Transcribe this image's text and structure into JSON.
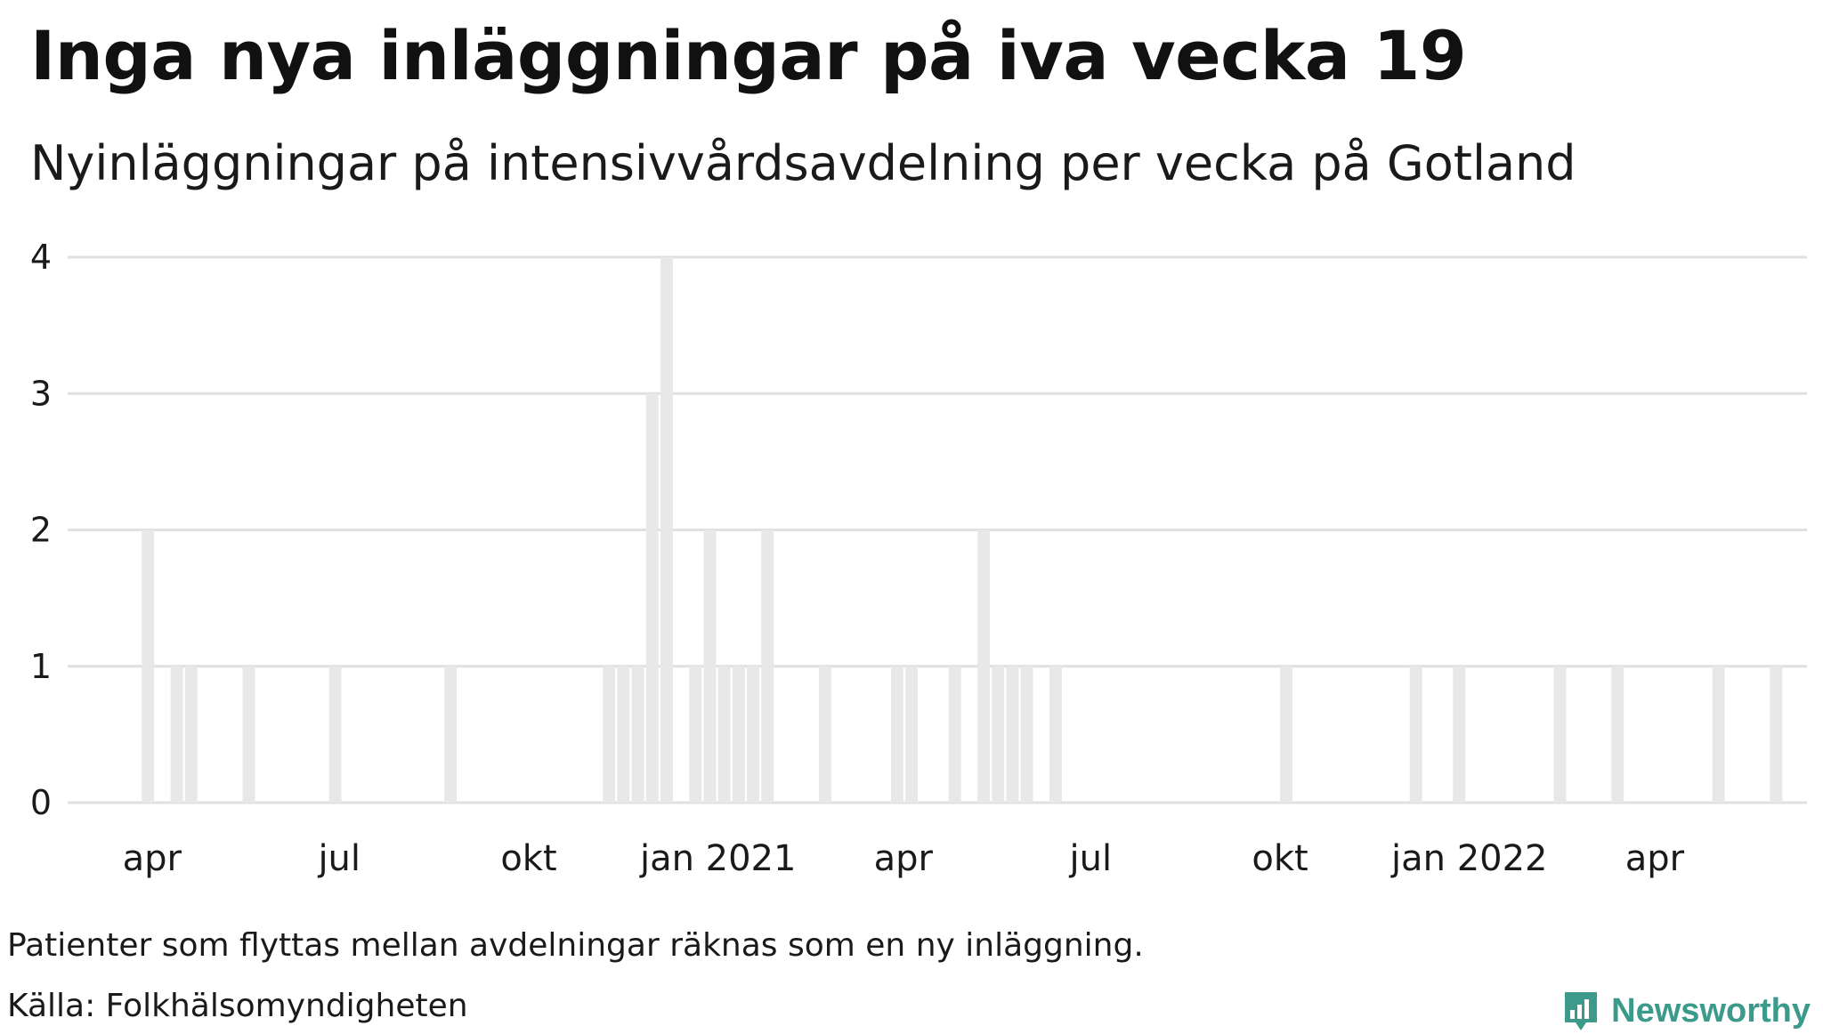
{
  "header": {
    "title": "Inga nya inläggningar på iva vecka 19",
    "subtitle": "Nyinläggningar på intensivvårdsavdelning per vecka på Gotland"
  },
  "footer": {
    "note": "Patienter som flyttas mellan avdelningar räknas som en ny inläggning.",
    "source": "Källa: Folkhälsomyndigheten",
    "brand": "Newsworthy"
  },
  "colors": {
    "bar": "#e8e8e8",
    "grid": "#e0e0e0",
    "brand": "#3b9a8a"
  },
  "chart_data": {
    "type": "bar",
    "title": "Inga nya inläggningar på iva vecka 19",
    "subtitle": "Nyinläggningar på intensivvårdsavdelning per vecka på Gotland",
    "xlabel": "",
    "ylabel": "",
    "ylim": [
      0,
      4
    ],
    "yticks": [
      0,
      1,
      2,
      3,
      4
    ],
    "grid": true,
    "legend": "none",
    "xlim": [
      "2020-02-20",
      "2022-06-14"
    ],
    "xticks": [
      {
        "date": "2020-04-01",
        "label": "apr"
      },
      {
        "date": "2020-07-01",
        "label": "jul"
      },
      {
        "date": "2020-10-01",
        "label": "okt"
      },
      {
        "date": "2021-01-01",
        "label": "jan 2021"
      },
      {
        "date": "2021-04-01",
        "label": "apr"
      },
      {
        "date": "2021-07-01",
        "label": "jul"
      },
      {
        "date": "2021-10-01",
        "label": "okt"
      },
      {
        "date": "2022-01-01",
        "label": "jan 2022"
      },
      {
        "date": "2022-04-01",
        "label": "apr"
      }
    ],
    "points": [
      {
        "date": "2020-03-30",
        "value": 2
      },
      {
        "date": "2020-04-13",
        "value": 1
      },
      {
        "date": "2020-04-20",
        "value": 1
      },
      {
        "date": "2020-05-18",
        "value": 1
      },
      {
        "date": "2020-06-29",
        "value": 1
      },
      {
        "date": "2020-08-24",
        "value": 1
      },
      {
        "date": "2020-11-09",
        "value": 1
      },
      {
        "date": "2020-11-16",
        "value": 1
      },
      {
        "date": "2020-11-23",
        "value": 1
      },
      {
        "date": "2020-11-30",
        "value": 3
      },
      {
        "date": "2020-12-07",
        "value": 4
      },
      {
        "date": "2020-12-21",
        "value": 1
      },
      {
        "date": "2020-12-28",
        "value": 2
      },
      {
        "date": "2021-01-04",
        "value": 1
      },
      {
        "date": "2021-01-11",
        "value": 1
      },
      {
        "date": "2021-01-18",
        "value": 1
      },
      {
        "date": "2021-01-25",
        "value": 2
      },
      {
        "date": "2021-02-22",
        "value": 1
      },
      {
        "date": "2021-03-29",
        "value": 1
      },
      {
        "date": "2021-04-05",
        "value": 1
      },
      {
        "date": "2021-04-26",
        "value": 1
      },
      {
        "date": "2021-05-10",
        "value": 2
      },
      {
        "date": "2021-05-17",
        "value": 1
      },
      {
        "date": "2021-05-24",
        "value": 1
      },
      {
        "date": "2021-05-31",
        "value": 1
      },
      {
        "date": "2021-06-14",
        "value": 1
      },
      {
        "date": "2021-10-04",
        "value": 1
      },
      {
        "date": "2021-12-06",
        "value": 1
      },
      {
        "date": "2021-12-27",
        "value": 1
      },
      {
        "date": "2022-02-14",
        "value": 1
      },
      {
        "date": "2022-03-14",
        "value": 1
      },
      {
        "date": "2022-05-02",
        "value": 1
      },
      {
        "date": "2022-05-30",
        "value": 1
      }
    ]
  }
}
